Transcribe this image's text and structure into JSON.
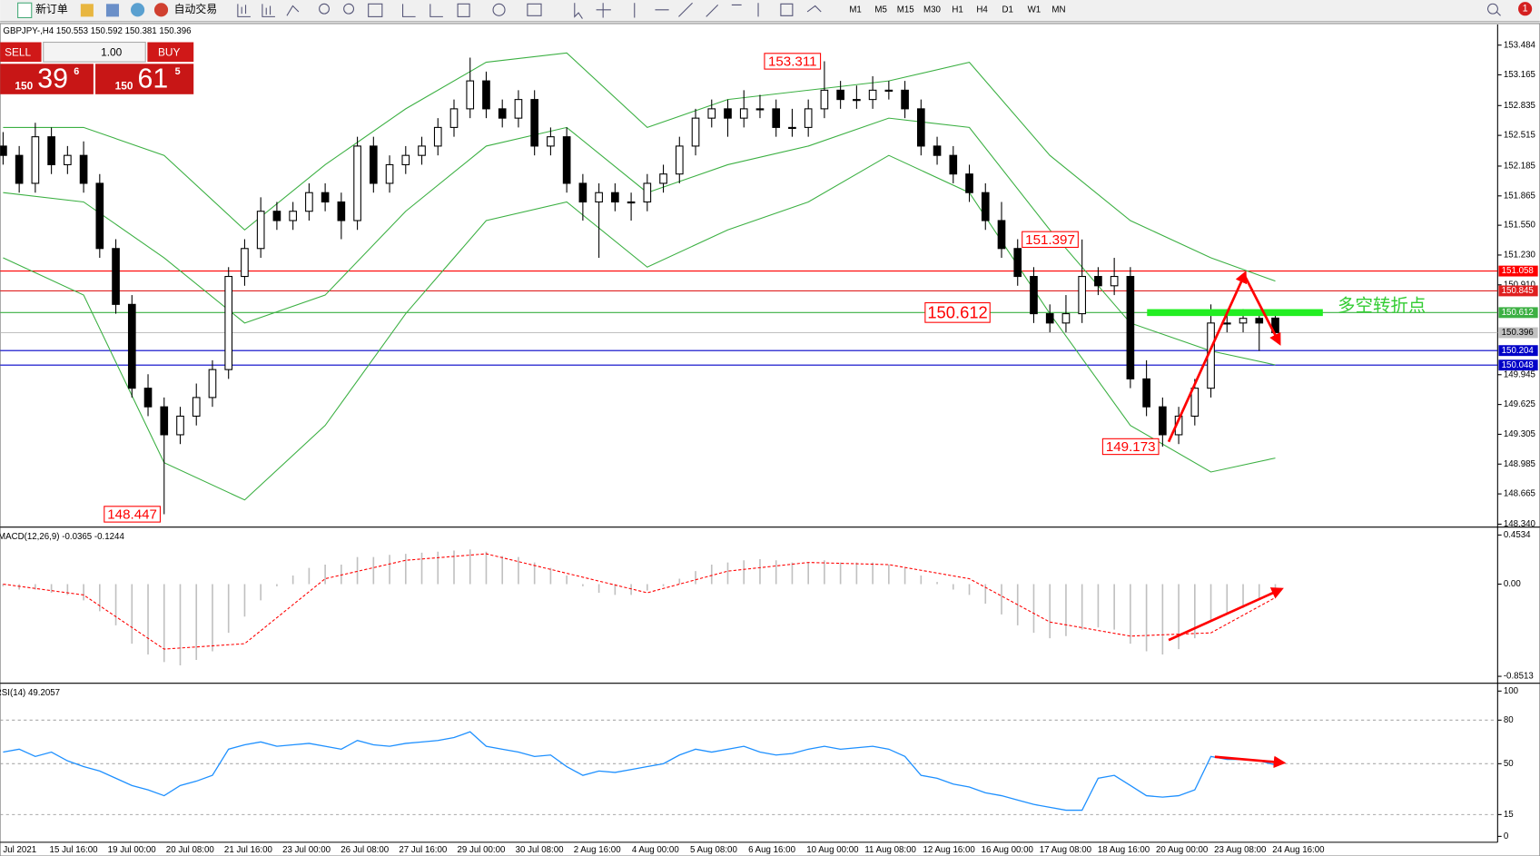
{
  "toolbar": {
    "new_order": "新订单",
    "auto_trading": "自动交易",
    "timeframes": [
      "M1",
      "M5",
      "M15",
      "M30",
      "H1",
      "H4",
      "D1",
      "W1",
      "MN"
    ],
    "alerts": "1"
  },
  "trade_panel": {
    "sell": "SELL",
    "buy": "BUY",
    "lots": "1.00",
    "bid": {
      "big_figure": "150",
      "pips": "39",
      "fraction": "6"
    },
    "ask": {
      "big_figure": "150",
      "pips": "61",
      "fraction": "5"
    }
  },
  "chart_data": {
    "type": "candlestick",
    "title": "GBPJPY-,H4  150.553 150.592 150.381 150.396",
    "ohlc": [
      [
        152.4,
        152.55,
        152.2,
        152.3
      ],
      [
        152.3,
        152.4,
        151.9,
        152.0
      ],
      [
        152.0,
        152.65,
        151.9,
        152.5
      ],
      [
        152.5,
        152.6,
        152.1,
        152.2
      ],
      [
        152.2,
        152.4,
        152.1,
        152.3
      ],
      [
        152.3,
        152.45,
        151.9,
        152.0
      ],
      [
        152.0,
        152.1,
        151.2,
        151.3
      ],
      [
        151.3,
        151.4,
        150.6,
        150.7
      ],
      [
        150.7,
        150.8,
        149.7,
        149.8
      ],
      [
        149.8,
        149.95,
        149.5,
        149.6
      ],
      [
        149.6,
        149.7,
        148.447,
        149.3
      ],
      [
        149.3,
        149.6,
        149.2,
        149.5
      ],
      [
        149.5,
        149.85,
        149.4,
        149.7
      ],
      [
        149.7,
        150.1,
        149.6,
        150.0
      ],
      [
        150.0,
        151.1,
        149.9,
        151.0
      ],
      [
        151.0,
        151.4,
        150.9,
        151.3
      ],
      [
        151.3,
        151.85,
        151.2,
        151.7
      ],
      [
        151.7,
        151.8,
        151.5,
        151.6
      ],
      [
        151.6,
        151.8,
        151.5,
        151.7
      ],
      [
        151.7,
        152.0,
        151.6,
        151.9
      ],
      [
        151.9,
        152.0,
        151.7,
        151.8
      ],
      [
        151.8,
        151.9,
        151.4,
        151.6
      ],
      [
        151.6,
        152.5,
        151.5,
        152.4
      ],
      [
        152.4,
        152.5,
        151.9,
        152.0
      ],
      [
        152.0,
        152.3,
        151.9,
        152.2
      ],
      [
        152.2,
        152.4,
        152.1,
        152.3
      ],
      [
        152.3,
        152.5,
        152.2,
        152.4
      ],
      [
        152.4,
        152.7,
        152.3,
        152.6
      ],
      [
        152.6,
        152.9,
        152.5,
        152.8
      ],
      [
        152.8,
        153.35,
        152.7,
        153.1
      ],
      [
        153.1,
        153.2,
        152.7,
        152.8
      ],
      [
        152.8,
        152.9,
        152.6,
        152.7
      ],
      [
        152.7,
        153.0,
        152.6,
        152.9
      ],
      [
        152.9,
        153.0,
        152.3,
        152.4
      ],
      [
        152.4,
        152.6,
        152.3,
        152.5
      ],
      [
        152.5,
        152.6,
        151.9,
        152.0
      ],
      [
        152.0,
        152.1,
        151.6,
        151.8
      ],
      [
        151.8,
        152.0,
        151.2,
        151.9
      ],
      [
        151.9,
        152.0,
        151.7,
        151.8
      ],
      [
        151.8,
        151.9,
        151.6,
        151.8
      ],
      [
        151.8,
        152.1,
        151.7,
        152.0
      ],
      [
        152.0,
        152.2,
        151.9,
        152.1
      ],
      [
        152.1,
        152.5,
        152.0,
        152.4
      ],
      [
        152.4,
        152.8,
        152.3,
        152.7
      ],
      [
        152.7,
        152.9,
        152.6,
        152.8
      ],
      [
        152.8,
        152.9,
        152.5,
        152.7
      ],
      [
        152.7,
        153.0,
        152.6,
        152.8
      ],
      [
        152.8,
        152.95,
        152.7,
        152.8
      ],
      [
        152.8,
        152.9,
        152.5,
        152.6
      ],
      [
        152.6,
        152.8,
        152.5,
        152.6
      ],
      [
        152.6,
        152.9,
        152.5,
        152.8
      ],
      [
        152.8,
        153.311,
        152.7,
        153.0
      ],
      [
        153.0,
        153.1,
        152.8,
        152.9
      ],
      [
        152.9,
        153.05,
        152.8,
        152.9
      ],
      [
        152.9,
        153.15,
        152.8,
        153.0
      ],
      [
        153.0,
        153.1,
        152.9,
        153.0
      ],
      [
        153.0,
        153.1,
        152.7,
        152.8
      ],
      [
        152.8,
        152.9,
        152.3,
        152.4
      ],
      [
        152.4,
        152.5,
        152.2,
        152.3
      ],
      [
        152.3,
        152.4,
        152.0,
        152.1
      ],
      [
        152.1,
        152.2,
        151.8,
        151.9
      ],
      [
        151.9,
        152.0,
        151.5,
        151.6
      ],
      [
        151.6,
        151.8,
        151.2,
        151.3
      ],
      [
        151.3,
        151.4,
        150.9,
        151.0
      ],
      [
        151.0,
        151.1,
        150.5,
        150.6
      ],
      [
        150.6,
        150.7,
        150.4,
        150.5
      ],
      [
        150.5,
        150.8,
        150.4,
        150.6
      ],
      [
        150.6,
        151.397,
        150.5,
        151.0
      ],
      [
        151.0,
        151.1,
        150.8,
        150.9
      ],
      [
        150.9,
        151.2,
        150.8,
        151.0
      ],
      [
        151.0,
        151.1,
        149.8,
        149.9
      ],
      [
        149.9,
        150.1,
        149.5,
        149.6
      ],
      [
        149.6,
        149.7,
        149.173,
        149.3
      ],
      [
        149.3,
        149.6,
        149.2,
        149.5
      ],
      [
        149.5,
        149.9,
        149.4,
        149.8
      ],
      [
        149.8,
        150.7,
        149.7,
        150.5
      ],
      [
        150.5,
        150.65,
        150.4,
        150.5
      ],
      [
        150.5,
        150.65,
        150.4,
        150.55
      ],
      [
        150.55,
        150.6,
        150.2,
        150.5
      ],
      [
        150.553,
        150.592,
        150.381,
        150.396
      ]
    ],
    "ylim": [
      148.308,
      153.705
    ],
    "yticks": [
      153.484,
      153.165,
      152.835,
      152.515,
      152.185,
      151.865,
      {
        "value": 151.55,
        "label": "151.550"
      },
      {
        "value": 151.23,
        "label": "151.230"
      },
      {
        "value": 150.91,
        "label": "150.910"
      },
      149.945,
      149.625,
      149.305,
      148.985,
      148.665,
      {
        "value": 148.34,
        "label": "148.340"
      }
    ],
    "bands": {
      "color": "#3cb043",
      "x": [
        0,
        5,
        10,
        15,
        20,
        25,
        30,
        35,
        40,
        45,
        50,
        55,
        60,
        65,
        70,
        75,
        79
      ],
      "upper": [
        152.6,
        152.6,
        152.3,
        151.5,
        152.2,
        152.8,
        153.3,
        153.4,
        152.6,
        152.9,
        153.0,
        153.1,
        153.3,
        152.3,
        151.6,
        151.2,
        150.95
      ],
      "middle": [
        151.9,
        151.8,
        151.2,
        150.5,
        150.8,
        151.7,
        152.4,
        152.6,
        151.9,
        152.2,
        152.4,
        152.7,
        152.6,
        151.5,
        150.5,
        150.2,
        150.05
      ],
      "lower": [
        151.2,
        150.8,
        149.0,
        148.6,
        149.4,
        150.6,
        151.6,
        151.8,
        151.1,
        151.5,
        151.8,
        152.3,
        151.9,
        150.6,
        149.4,
        148.9,
        149.05
      ]
    },
    "levels": [
      {
        "value": 151.058,
        "color": "#ff0000"
      },
      {
        "value": 150.845,
        "color": "#e02020"
      },
      {
        "value": 150.612,
        "color": "#3cb043"
      },
      {
        "value": 150.396,
        "color": "#c0c0c0"
      },
      {
        "value": 150.204,
        "color": "#0000c8"
      },
      {
        "value": 150.048,
        "color": "#0000c8"
      }
    ],
    "annotations": [
      {
        "value": 153.311,
        "index": 51
      },
      {
        "value": 151.397,
        "index": 67
      },
      {
        "value": 149.173,
        "index": 72
      },
      {
        "value": 148.447,
        "index": 10
      }
    ],
    "turning_point": "多空转折点",
    "x_labels": [
      "Jul 2021",
      "15 Jul 16:00",
      "19 Jul 00:00",
      "20 Jul 08:00",
      "21 Jul 16:00",
      "23 Jul 00:00",
      "26 Jul 08:00",
      "27 Jul 16:00",
      "29 Jul 00:00",
      "30 Jul 08:00",
      "2 Aug 16:00",
      "4 Aug 00:00",
      "5 Aug 08:00",
      "6 Aug 16:00",
      "10 Aug 00:00",
      "11 Aug 08:00",
      "12 Aug 16:00",
      "16 Aug 00:00",
      "17 Aug 08:00",
      "18 Aug 16:00",
      "20 Aug 00:00",
      "23 Aug 08:00",
      "24 Aug 16:00"
    ],
    "macd": {
      "title": "MACD(12,26,9) -0.0365 -0.1244",
      "ylim": [
        -0.906,
        0.517
      ],
      "yticks": [
        0.4534,
        {
          "value": 0,
          "label": "0.00"
        },
        -0.8513
      ],
      "histogram_color": "#c0c0c0",
      "signal_color": "#ff0000",
      "histogram": [
        -0.02,
        -0.05,
        -0.05,
        -0.08,
        -0.1,
        -0.15,
        -0.25,
        -0.38,
        -0.55,
        -0.65,
        -0.72,
        -0.75,
        -0.7,
        -0.62,
        -0.45,
        -0.3,
        -0.15,
        -0.02,
        0.08,
        0.15,
        0.18,
        0.18,
        0.25,
        0.25,
        0.27,
        0.28,
        0.29,
        0.3,
        0.31,
        0.32,
        0.3,
        0.26,
        0.25,
        0.2,
        0.15,
        0.08,
        -0.02,
        -0.08,
        -0.1,
        -0.1,
        -0.06,
        -0.02,
        0.05,
        0.12,
        0.18,
        0.2,
        0.22,
        0.23,
        0.22,
        0.2,
        0.2,
        0.22,
        0.2,
        0.2,
        0.2,
        0.18,
        0.15,
        0.08,
        0.02,
        -0.05,
        -0.1,
        -0.18,
        -0.28,
        -0.38,
        -0.45,
        -0.5,
        -0.48,
        -0.42,
        -0.4,
        -0.42,
        -0.55,
        -0.62,
        -0.65,
        -0.6,
        -0.5,
        -0.35,
        -0.28,
        -0.22,
        -0.15,
        -0.0365
      ],
      "signal": {
        "x": [
          0,
          5,
          10,
          15,
          20,
          25,
          30,
          35,
          40,
          45,
          50,
          55,
          60,
          65,
          70,
          75,
          79
        ],
        "values": [
          0.0,
          -0.1,
          -0.6,
          -0.55,
          0.05,
          0.22,
          0.28,
          0.1,
          -0.08,
          0.12,
          0.2,
          0.18,
          0.05,
          -0.35,
          -0.48,
          -0.45,
          -0.1244
        ]
      }
    },
    "rsi": {
      "title": "RSI(14) 49.2057",
      "ylim": [
        0,
        100
      ],
      "yticks": [
        100,
        80,
        50,
        15,
        0
      ],
      "levels": [
        80,
        50,
        15
      ],
      "color": "#1e90ff",
      "values": [
        58,
        60,
        55,
        58,
        52,
        48,
        45,
        40,
        35,
        32,
        28,
        35,
        38,
        42,
        60,
        63,
        65,
        62,
        63,
        64,
        62,
        60,
        66,
        63,
        62,
        64,
        65,
        66,
        68,
        72,
        62,
        60,
        58,
        55,
        56,
        48,
        42,
        45,
        44,
        46,
        48,
        50,
        56,
        60,
        58,
        60,
        62,
        58,
        56,
        57,
        60,
        62,
        60,
        61,
        62,
        60,
        55,
        42,
        40,
        36,
        34,
        30,
        28,
        25,
        22,
        20,
        18,
        18,
        40,
        42,
        35,
        28,
        27,
        28,
        32,
        55,
        53,
        53,
        52,
        49.2057
      ]
    }
  }
}
